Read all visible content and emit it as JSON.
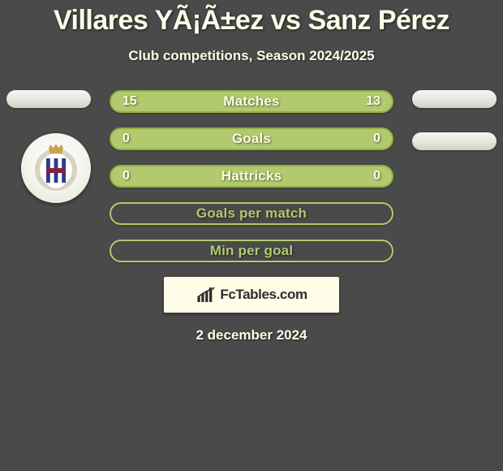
{
  "header": {
    "title": "Villares YÃ¡Ã±ez vs Sanz Pérez",
    "subtitle": "Club competitions, Season 2024/2025"
  },
  "colors": {
    "background": "#4a4a4a",
    "text": "#fffde8",
    "plate": "#fffde8",
    "logo_text": "#2c2c2c",
    "pill_bg": "#e8e8df",
    "crest_stripe1": "#2b3c8a",
    "crest_stripe2": "#ffffff",
    "crest_ring": "#d8d3c0",
    "crest_crown": "#c9a24a"
  },
  "bars": [
    {
      "label": "Matches",
      "left": "15",
      "right": "13",
      "bg": "#b2c96d",
      "border": "#92af46",
      "label_color": "#fffde8",
      "val_color": "#fffde8"
    },
    {
      "label": "Goals",
      "left": "0",
      "right": "0",
      "bg": "#b2c96d",
      "border": "#92af46",
      "label_color": "#fffde8",
      "val_color": "#fffde8"
    },
    {
      "label": "Hattricks",
      "left": "0",
      "right": "0",
      "bg": "#b2c96d",
      "border": "#92af46",
      "label_color": "#fffde8",
      "val_color": "#fffde8"
    },
    {
      "label": "Goals per match",
      "left": "",
      "right": "",
      "bg": "#4a4a4a",
      "border": "#b2c96d",
      "label_color": "#b2c96d",
      "val_color": "#b2c96d"
    },
    {
      "label": "Min per goal",
      "left": "",
      "right": "",
      "bg": "#4a4a4a",
      "border": "#b2c96d",
      "label_color": "#b2c96d",
      "val_color": "#b2c96d"
    }
  ],
  "branding": {
    "site": "FcTables.com"
  },
  "footer": {
    "date": "2 december 2024"
  }
}
